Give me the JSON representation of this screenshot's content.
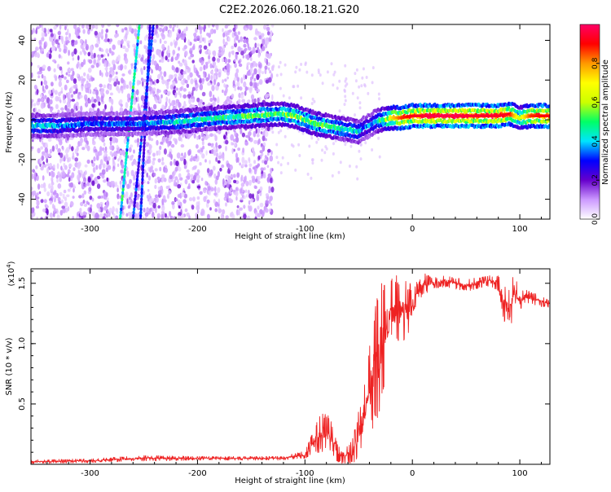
{
  "title": "C2E2.2026.060.18.21.G20",
  "chart_data": [
    {
      "type": "heatmap",
      "title": "C2E2.2026.060.18.21.G20",
      "xlabel": "Height of straight line (km)",
      "ylabel": "Frequency (Hz)",
      "xlim": [
        -355,
        128
      ],
      "ylim": [
        -50,
        48
      ],
      "xticks": [
        -300,
        -200,
        -100,
        0,
        100
      ],
      "yticks": [
        -40,
        -20,
        0,
        20,
        40
      ],
      "colorbar": {
        "label": "Normalized spectral amplitude",
        "range": [
          0,
          1
        ],
        "ticks": [
          "0.0",
          "0.2",
          "0.4",
          "0.6",
          "0.8"
        ],
        "colors": [
          "#ffffff",
          "#cc99ff",
          "#6600cc",
          "#0000ff",
          "#00e5ff",
          "#00ff66",
          "#ccff00",
          "#ffff00",
          "#ff9900",
          "#ff0000",
          "#ff0066"
        ]
      },
      "frequency_track": {
        "x": [
          -345,
          -330,
          -300,
          -260,
          -220,
          -180,
          -150,
          -125,
          -110,
          -100,
          -90,
          -80,
          -70,
          -60,
          -50,
          -45,
          -40,
          -35,
          -30,
          -20,
          -10,
          0,
          20,
          40,
          60,
          80,
          90,
          95,
          100,
          110,
          128
        ],
        "y": [
          -3,
          -3,
          -2,
          -2,
          -1,
          1,
          2,
          3,
          2,
          0,
          -2,
          -3,
          -4,
          -5,
          -6,
          -4,
          -3,
          -1,
          0,
          1,
          1,
          2,
          2,
          2,
          2,
          2,
          3,
          2,
          1,
          2,
          2
        ],
        "amplitude": [
          0.45,
          0.4,
          0.35,
          0.35,
          0.45,
          0.5,
          0.55,
          0.55,
          0.6,
          0.55,
          0.55,
          0.55,
          0.5,
          0.45,
          0.45,
          0.35,
          0.4,
          0.4,
          0.5,
          0.7,
          0.85,
          0.9,
          0.95,
          0.95,
          0.92,
          0.92,
          0.9,
          0.75,
          0.6,
          0.85,
          0.9
        ]
      },
      "streaks": [
        {
          "x": [
            -272,
            -254
          ],
          "y": [
            -50,
            48
          ],
          "amplitude": 0.45
        },
        {
          "x": [
            -260,
            -241
          ],
          "y": [
            -50,
            48
          ],
          "amplitude": 0.3
        },
        {
          "x": [
            -253,
            -244
          ],
          "y": [
            -50,
            48
          ],
          "amplitude": 0.3
        }
      ],
      "noise_xrange": [
        -355,
        -130
      ]
    },
    {
      "type": "line",
      "xlabel": "Height of straight line (km)",
      "ylabel": "SNR (10 * v/v)",
      "exponent_label": "(x10",
      "exponent_power": "4",
      "exponent_close": ")",
      "xlim": [
        -355,
        128
      ],
      "ylim": [
        0,
        1.62
      ],
      "xticks": [
        -300,
        -200,
        -100,
        0,
        100
      ],
      "yticks": [
        "0.5",
        "1.0",
        "1.5"
      ],
      "series": [
        {
          "name": "SNR",
          "color": "#ee2222",
          "x": [
            -355,
            -300,
            -250,
            -200,
            -150,
            -120,
            -100,
            -90,
            -85,
            -80,
            -75,
            -70,
            -65,
            -60,
            -55,
            -50,
            -45,
            -40,
            -35,
            -30,
            -25,
            -20,
            -15,
            -10,
            -5,
            0,
            5,
            10,
            20,
            30,
            40,
            50,
            60,
            70,
            80,
            85,
            90,
            95,
            100,
            105,
            110,
            120,
            128
          ],
          "y": [
            0.02,
            0.03,
            0.05,
            0.05,
            0.05,
            0.05,
            0.08,
            0.2,
            0.26,
            0.27,
            0.22,
            0.1,
            0.05,
            0.08,
            0.12,
            0.25,
            0.4,
            0.6,
            0.8,
            0.95,
            1.1,
            1.2,
            1.28,
            1.25,
            1.28,
            1.3,
            1.4,
            1.5,
            1.5,
            1.52,
            1.5,
            1.48,
            1.5,
            1.52,
            1.5,
            1.35,
            1.25,
            1.45,
            1.35,
            1.4,
            1.38,
            1.35,
            1.33
          ],
          "noise": [
            0.01,
            0.01,
            0.015,
            0.01,
            0.01,
            0.01,
            0.02,
            0.08,
            0.1,
            0.1,
            0.08,
            0.05,
            0.03,
            0.05,
            0.08,
            0.12,
            0.2,
            0.25,
            0.3,
            0.35,
            0.3,
            0.25,
            0.2,
            0.18,
            0.15,
            0.12,
            0.08,
            0.06,
            0.03,
            0.03,
            0.03,
            0.03,
            0.03,
            0.03,
            0.04,
            0.1,
            0.15,
            0.08,
            0.06,
            0.04,
            0.03,
            0.03,
            0.02
          ]
        }
      ]
    }
  ]
}
